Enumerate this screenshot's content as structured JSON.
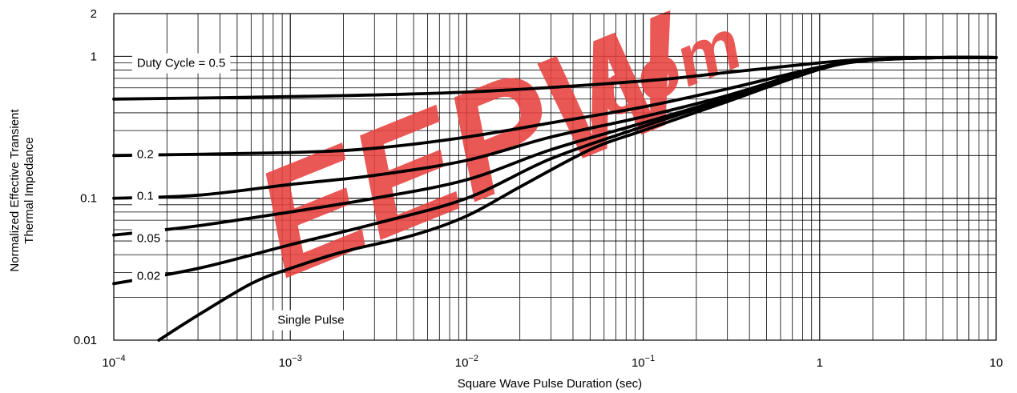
{
  "chart_data": {
    "type": "line",
    "x_scale": "log",
    "y_scale": "log",
    "xlim": [
      0.0001,
      10
    ],
    "ylim": [
      0.01,
      2
    ],
    "grid": true,
    "xlabel": "Square Wave Pulse Duration (sec)",
    "ylabel_lines": [
      "Normalized Effective Transient",
      "Thermal Impedance"
    ],
    "x_ticks": [
      {
        "value": 0.0001,
        "base": "10",
        "exp": "−4"
      },
      {
        "value": 0.001,
        "base": "10",
        "exp": "−3"
      },
      {
        "value": 0.01,
        "base": "10",
        "exp": "−2"
      },
      {
        "value": 0.1,
        "base": "10",
        "exp": "−1"
      },
      {
        "value": 1,
        "base": "1",
        "exp": ""
      },
      {
        "value": 10,
        "base": "10",
        "exp": ""
      }
    ],
    "y_ticks": [
      {
        "value": 0.01,
        "label": "0.01"
      },
      {
        "value": 0.1,
        "label": "0.1"
      },
      {
        "value": 1,
        "label": "1"
      },
      {
        "value": 2,
        "label": "2"
      }
    ],
    "series": [
      {
        "name": "Duty Cycle = 0.5",
        "label_at": [
          0.000127,
          0.9
        ],
        "x": [
          0.0001,
          0.001,
          0.01,
          0.1,
          0.3,
          1,
          2,
          5,
          10
        ],
        "y": [
          0.5,
          0.52,
          0.56,
          0.67,
          0.77,
          0.9,
          0.96,
          0.98,
          0.98
        ]
      },
      {
        "name": "0.2",
        "label_at": [
          0.000127,
          0.205
        ],
        "x": [
          0.0001,
          0.001,
          0.003,
          0.01,
          0.03,
          0.1,
          0.3,
          1,
          2,
          5,
          10
        ],
        "y": [
          0.2,
          0.21,
          0.225,
          0.27,
          0.34,
          0.44,
          0.59,
          0.84,
          0.95,
          0.98,
          0.98
        ]
      },
      {
        "name": "0.1",
        "label_at": [
          0.000127,
          0.104
        ],
        "x": [
          0.0001,
          0.0003,
          0.001,
          0.003,
          0.01,
          0.03,
          0.1,
          0.3,
          1,
          2,
          5,
          10
        ],
        "y": [
          0.1,
          0.105,
          0.125,
          0.145,
          0.185,
          0.27,
          0.375,
          0.53,
          0.83,
          0.94,
          0.98,
          0.98
        ]
      },
      {
        "name": "0.05",
        "label_at": [
          0.000127,
          0.0525
        ],
        "x": [
          0.0001,
          0.0003,
          0.001,
          0.003,
          0.01,
          0.03,
          0.1,
          0.3,
          1,
          2,
          5,
          10
        ],
        "y": [
          0.055,
          0.064,
          0.08,
          0.1,
          0.135,
          0.22,
          0.34,
          0.51,
          0.83,
          0.94,
          0.98,
          0.98
        ]
      },
      {
        "name": "0.02",
        "label_at": [
          0.000127,
          0.0285
        ],
        "x": [
          0.0001,
          0.0003,
          0.001,
          0.003,
          0.01,
          0.03,
          0.1,
          0.3,
          1,
          2,
          5,
          10
        ],
        "y": [
          0.025,
          0.032,
          0.047,
          0.066,
          0.1,
          0.19,
          0.32,
          0.5,
          0.82,
          0.94,
          0.98,
          0.98
        ]
      },
      {
        "name": "Single Pulse",
        "label_at": [
          0.000795,
          0.0139
        ],
        "x": [
          0.00018,
          0.0003,
          0.0006,
          0.001,
          0.002,
          0.005,
          0.01,
          0.02,
          0.05,
          0.1,
          0.3,
          1,
          2,
          5,
          10
        ],
        "y": [
          0.01,
          0.015,
          0.025,
          0.032,
          0.042,
          0.055,
          0.075,
          0.12,
          0.22,
          0.3,
          0.48,
          0.81,
          0.94,
          0.98,
          0.98
        ]
      }
    ]
  },
  "watermark": {
    "text_main": "EEPW",
    "text_suffix": ".com",
    "color": "#e8423f"
  },
  "colors": {
    "curve": "#000000",
    "grid": "#000000",
    "background": "#ffffff"
  }
}
